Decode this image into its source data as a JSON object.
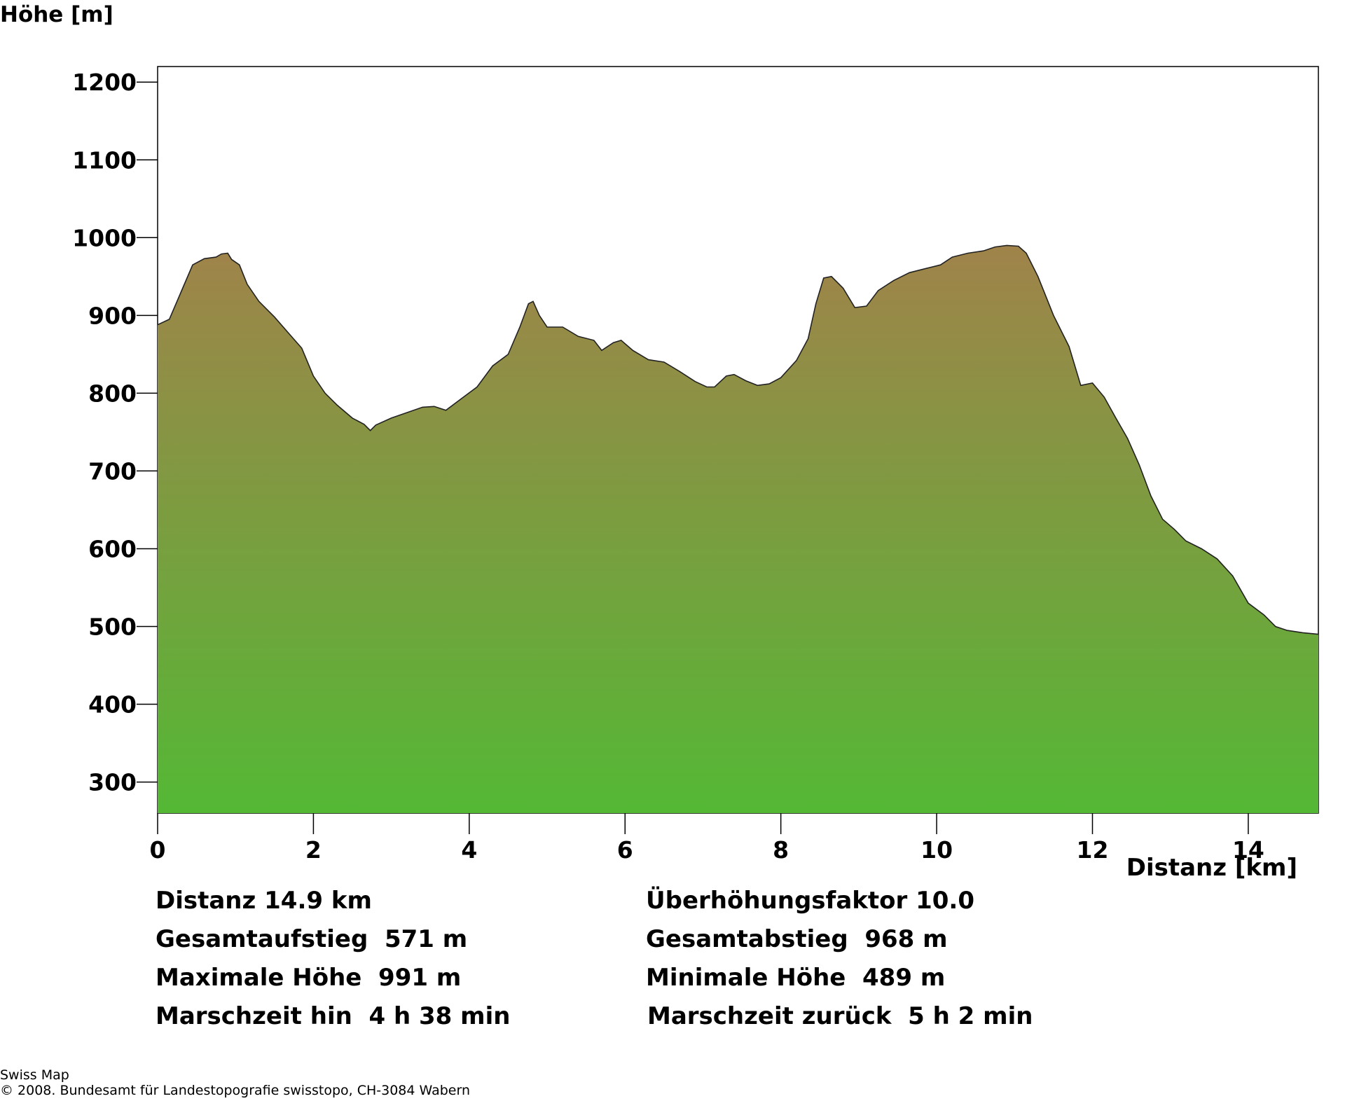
{
  "chart_data": {
    "type": "area",
    "ylabel": "Höhe [m]",
    "xlabel": "Distanz [km]",
    "xlim": [
      0,
      14.9
    ],
    "ylim": [
      260,
      1220
    ],
    "xticks": [
      0,
      2,
      4,
      6,
      8,
      10,
      12,
      14
    ],
    "yticks": [
      300,
      400,
      500,
      600,
      700,
      800,
      900,
      1000,
      1100,
      1200
    ],
    "grid": false,
    "colors": {
      "top": "#a0834a",
      "bottom": "#54b835",
      "outline": "#222222"
    },
    "profile": [
      [
        0.0,
        888
      ],
      [
        0.15,
        895
      ],
      [
        0.3,
        930
      ],
      [
        0.45,
        965
      ],
      [
        0.6,
        973
      ],
      [
        0.75,
        975
      ],
      [
        0.82,
        979
      ],
      [
        0.9,
        980
      ],
      [
        0.95,
        972
      ],
      [
        1.05,
        965
      ],
      [
        1.15,
        940
      ],
      [
        1.3,
        918
      ],
      [
        1.5,
        898
      ],
      [
        1.7,
        875
      ],
      [
        1.85,
        858
      ],
      [
        2.0,
        822
      ],
      [
        2.15,
        800
      ],
      [
        2.3,
        785
      ],
      [
        2.5,
        768
      ],
      [
        2.65,
        760
      ],
      [
        2.73,
        752
      ],
      [
        2.8,
        759
      ],
      [
        3.0,
        768
      ],
      [
        3.2,
        775
      ],
      [
        3.4,
        782
      ],
      [
        3.55,
        783
      ],
      [
        3.7,
        778
      ],
      [
        3.9,
        793
      ],
      [
        4.1,
        808
      ],
      [
        4.3,
        835
      ],
      [
        4.5,
        850
      ],
      [
        4.65,
        885
      ],
      [
        4.76,
        915
      ],
      [
        4.82,
        918
      ],
      [
        4.9,
        900
      ],
      [
        5.0,
        885
      ],
      [
        5.2,
        885
      ],
      [
        5.4,
        873
      ],
      [
        5.6,
        868
      ],
      [
        5.7,
        855
      ],
      [
        5.85,
        865
      ],
      [
        5.95,
        868
      ],
      [
        6.1,
        855
      ],
      [
        6.3,
        843
      ],
      [
        6.5,
        840
      ],
      [
        6.7,
        828
      ],
      [
        6.9,
        815
      ],
      [
        7.05,
        808
      ],
      [
        7.15,
        808
      ],
      [
        7.3,
        822
      ],
      [
        7.4,
        824
      ],
      [
        7.55,
        816
      ],
      [
        7.7,
        810
      ],
      [
        7.85,
        812
      ],
      [
        8.0,
        820
      ],
      [
        8.2,
        842
      ],
      [
        8.35,
        870
      ],
      [
        8.45,
        915
      ],
      [
        8.55,
        948
      ],
      [
        8.65,
        950
      ],
      [
        8.8,
        935
      ],
      [
        8.95,
        910
      ],
      [
        9.1,
        912
      ],
      [
        9.25,
        932
      ],
      [
        9.45,
        945
      ],
      [
        9.65,
        955
      ],
      [
        9.85,
        960
      ],
      [
        10.05,
        965
      ],
      [
        10.2,
        975
      ],
      [
        10.4,
        980
      ],
      [
        10.6,
        983
      ],
      [
        10.75,
        988
      ],
      [
        10.9,
        990
      ],
      [
        11.05,
        989
      ],
      [
        11.15,
        980
      ],
      [
        11.3,
        950
      ],
      [
        11.5,
        900
      ],
      [
        11.7,
        860
      ],
      [
        11.85,
        810
      ],
      [
        12.0,
        813
      ],
      [
        12.15,
        795
      ],
      [
        12.3,
        768
      ],
      [
        12.45,
        742
      ],
      [
        12.6,
        708
      ],
      [
        12.75,
        668
      ],
      [
        12.9,
        638
      ],
      [
        13.05,
        625
      ],
      [
        13.2,
        610
      ],
      [
        13.4,
        600
      ],
      [
        13.6,
        587
      ],
      [
        13.8,
        565
      ],
      [
        14.0,
        530
      ],
      [
        14.2,
        515
      ],
      [
        14.35,
        500
      ],
      [
        14.5,
        495
      ],
      [
        14.7,
        492
      ],
      [
        14.9,
        490
      ]
    ]
  },
  "stats": {
    "distanz": "Distanz 14.9 km",
    "ueberhoehung": "Überhöhungsfaktor 10.0",
    "aufstieg": "Gesamtaufstieg  571 m",
    "abstieg": "Gesamtabstieg  968 m",
    "max_hoehe": "Maximale Höhe  991 m",
    "min_hoehe": "Minimale Höhe  489 m",
    "marsch_hin": "Marschzeit hin  4 h 38 min",
    "marsch_zurueck": "Marschzeit zurück  5 h 2 min"
  },
  "credits": {
    "line1": "Swiss Map",
    "line2": "© 2008. Bundesamt für Landestopografie swisstopo, CH-3084 Wabern"
  }
}
